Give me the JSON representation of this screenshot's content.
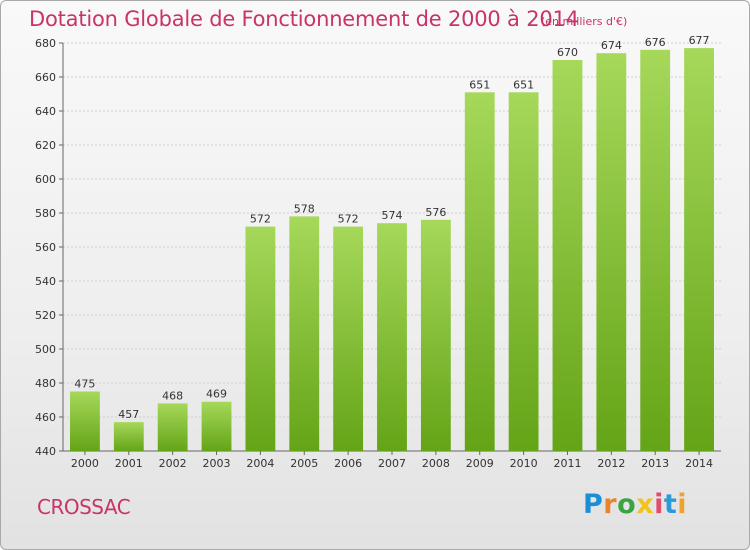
{
  "header": {
    "title": "Dotation Globale de Fonctionnement de 2000 à 2014",
    "unit": "(en milliers d'€)"
  },
  "footer": {
    "commune": "CROSSAC",
    "brand": "Proxiti"
  },
  "colors": {
    "title": "#c8336a",
    "bar_top": "#a6d85a",
    "bar_bottom": "#64a417",
    "brand_letters": [
      "#1a8fd8",
      "#e9842a",
      "#3aa540",
      "#f0c419",
      "#e44a6a",
      "#2c9ad9",
      "#f0a32a"
    ]
  },
  "chart_data": {
    "type": "bar",
    "categories": [
      "2000",
      "2001",
      "2002",
      "2003",
      "2004",
      "2005",
      "2006",
      "2007",
      "2008",
      "2009",
      "2010",
      "2011",
      "2012",
      "2013",
      "2014"
    ],
    "values": [
      475,
      457,
      468,
      469,
      572,
      578,
      572,
      574,
      576,
      651,
      651,
      670,
      674,
      676,
      677
    ],
    "ylim": [
      440,
      680
    ],
    "yticks": [
      440,
      460,
      480,
      500,
      520,
      540,
      560,
      580,
      600,
      620,
      640,
      660,
      680
    ],
    "grid": true,
    "xlabel": "",
    "ylabel": ""
  }
}
